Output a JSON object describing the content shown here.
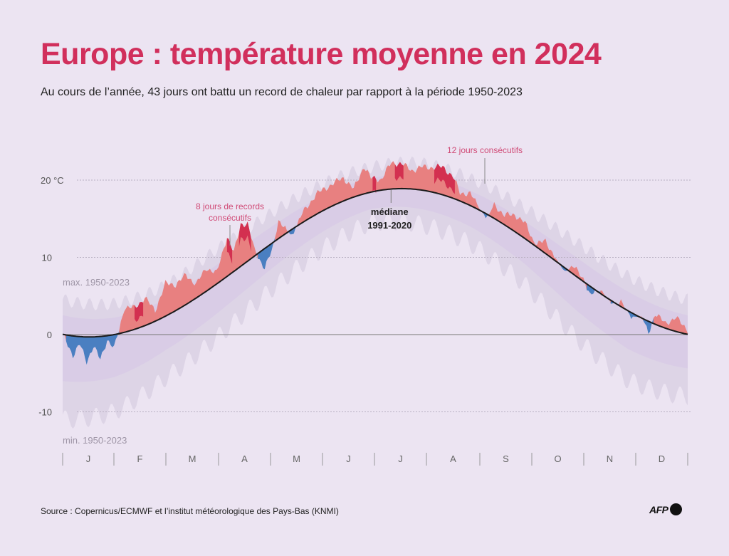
{
  "header": {
    "title": "Europe : température moyenne en 2024",
    "subtitle": "Au cours de l’année, 43 jours ont battu un record de chaleur par rapport à la période 1950-2023"
  },
  "footer": {
    "source": "Source : Copernicus/ECMWF et l’institut météorologique des Pays-Bas (KNMI)",
    "logo_text": "AFP"
  },
  "colors": {
    "title": "#d12f5c",
    "warm": "#e88080",
    "record": "#d33050",
    "cold": "#4a7fc1",
    "band_outer": "#ddd4e6",
    "band_inner": "#d9cce6",
    "median": "#1a1a1a",
    "annotation": "#d04a76"
  },
  "chart_data": {
    "type": "area",
    "title": "Europe : température moyenne en 2024",
    "ylabel": "°C",
    "ylim": [
      -13,
      24
    ],
    "yticks": [
      {
        "value": 20,
        "label": "20 °C"
      },
      {
        "value": 10,
        "label": "10"
      },
      {
        "value": 0,
        "label": "0"
      },
      {
        "value": -10,
        "label": "-10"
      }
    ],
    "months": [
      "J",
      "F",
      "M",
      "A",
      "M",
      "J",
      "J",
      "A",
      "S",
      "O",
      "N",
      "D"
    ],
    "grid": true,
    "band_labels": {
      "max": "max. 1950-2023",
      "min": "min. 1950-2023"
    },
    "median_label": [
      "médiane",
      "1991-2020"
    ],
    "median_model": {
      "mean": 9.3,
      "amplitude": 9.6,
      "peak_day": 198
    },
    "record_days_total": 43,
    "annotations": [
      {
        "lines": [
          "8 jours de records",
          "consécutifs"
        ],
        "day": 108
      },
      {
        "lines": [
          "12 jours consécutifs"
        ],
        "day": 217
      }
    ],
    "anomaly_keypoints_2024": [
      [
        0,
        0
      ],
      [
        6,
        -2.5
      ],
      [
        10,
        -1
      ],
      [
        14,
        -3.2
      ],
      [
        18,
        -1.2
      ],
      [
        22,
        -3
      ],
      [
        26,
        -0.5
      ],
      [
        30,
        -1.8
      ],
      [
        33,
        0.5
      ],
      [
        36,
        3.2
      ],
      [
        42,
        2.8
      ],
      [
        48,
        3.6
      ],
      [
        54,
        1.4
      ],
      [
        60,
        4.2
      ],
      [
        66,
        3.4
      ],
      [
        72,
        3.8
      ],
      [
        78,
        1.8
      ],
      [
        84,
        3.0
      ],
      [
        90,
        1.4
      ],
      [
        96,
        5.2
      ],
      [
        100,
        2.4
      ],
      [
        104,
        5.5
      ],
      [
        108,
        4.8
      ],
      [
        112,
        0.8
      ],
      [
        118,
        -2.6
      ],
      [
        122,
        -1.0
      ],
      [
        126,
        2.4
      ],
      [
        130,
        0.6
      ],
      [
        134,
        -0.8
      ],
      [
        140,
        1.2
      ],
      [
        148,
        2.6
      ],
      [
        156,
        2.8
      ],
      [
        164,
        3.0
      ],
      [
        170,
        1.0
      ],
      [
        176,
        3.6
      ],
      [
        180,
        1.8
      ],
      [
        186,
        1.4
      ],
      [
        192,
        3.4
      ],
      [
        198,
        3.2
      ],
      [
        204,
        2.4
      ],
      [
        210,
        3.0
      ],
      [
        216,
        3.2
      ],
      [
        222,
        3.6
      ],
      [
        228,
        2.8
      ],
      [
        232,
        1.0
      ],
      [
        238,
        1.6
      ],
      [
        244,
        0.0
      ],
      [
        248,
        -0.4
      ],
      [
        252,
        1.8
      ],
      [
        258,
        1.2
      ],
      [
        264,
        2.2
      ],
      [
        270,
        2.0
      ],
      [
        276,
        0.2
      ],
      [
        282,
        1.6
      ],
      [
        288,
        0.4
      ],
      [
        293,
        -0.6
      ],
      [
        298,
        1.0
      ],
      [
        304,
        0.4
      ],
      [
        308,
        -1.2
      ],
      [
        314,
        0.6
      ],
      [
        320,
        -0.5
      ],
      [
        326,
        0.8
      ],
      [
        332,
        -0.6
      ],
      [
        338,
        0.2
      ],
      [
        342,
        -1.6
      ],
      [
        346,
        1.4
      ],
      [
        352,
        0.6
      ],
      [
        358,
        1.8
      ],
      [
        365,
        0.6
      ]
    ],
    "band_max_offset_keypoints": [
      [
        0,
        4.5
      ],
      [
        30,
        4
      ],
      [
        60,
        4
      ],
      [
        90,
        4.5
      ],
      [
        120,
        4
      ],
      [
        150,
        3.5
      ],
      [
        180,
        3.2
      ],
      [
        210,
        3.5
      ],
      [
        240,
        3.5
      ],
      [
        270,
        4
      ],
      [
        300,
        4.5
      ],
      [
        330,
        4.5
      ],
      [
        365,
        4.5
      ]
    ],
    "band_min_offset_keypoints": [
      [
        0,
        -11
      ],
      [
        30,
        -10
      ],
      [
        60,
        -8
      ],
      [
        90,
        -7
      ],
      [
        120,
        -6
      ],
      [
        150,
        -5
      ],
      [
        180,
        -4
      ],
      [
        210,
        -4.5
      ],
      [
        240,
        -5
      ],
      [
        270,
        -6
      ],
      [
        300,
        -8
      ],
      [
        330,
        -9
      ],
      [
        365,
        -8
      ]
    ]
  }
}
